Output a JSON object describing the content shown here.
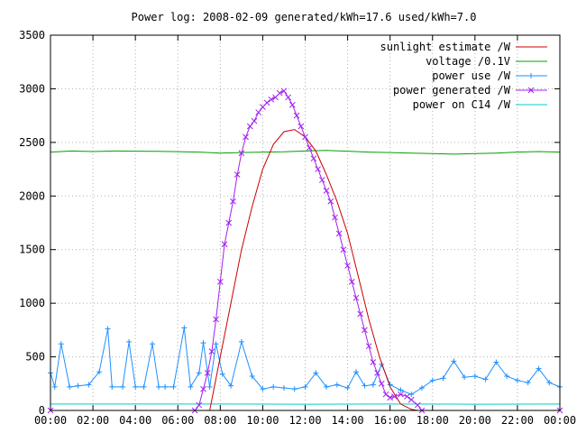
{
  "chart_data": {
    "type": "line",
    "title": "Power log: 2008-02-09 generated/kWh=17.6 used/kWh=7.0",
    "xlabel": "",
    "ylabel": "",
    "xlim": [
      0,
      24
    ],
    "ylim": [
      0,
      3500
    ],
    "grid": true,
    "legend_position": "top-right",
    "x_ticks": [
      "00:00",
      "02:00",
      "04:00",
      "06:00",
      "08:00",
      "10:00",
      "12:00",
      "14:00",
      "16:00",
      "18:00",
      "20:00",
      "22:00",
      "00:00"
    ],
    "y_ticks": [
      0,
      500,
      1000,
      1500,
      2000,
      2500,
      3000,
      3500
    ],
    "series": [
      {
        "name": "sunlight estimate /W",
        "color": "#cc0000",
        "marker": "none",
        "x": [
          7.5,
          8.0,
          8.5,
          9.0,
          9.5,
          10.0,
          10.5,
          11.0,
          11.5,
          12.0,
          12.5,
          13.0,
          13.5,
          14.0,
          14.5,
          15.0,
          15.5,
          16.0,
          16.5,
          17.0,
          17.3
        ],
        "y": [
          0,
          500,
          1000,
          1500,
          1900,
          2250,
          2480,
          2600,
          2620,
          2550,
          2420,
          2200,
          1950,
          1650,
          1250,
          850,
          500,
          220,
          60,
          10,
          0
        ]
      },
      {
        "name": "voltage /0.1V",
        "color": "#00a000",
        "marker": "none",
        "x": [
          0,
          1,
          2,
          3,
          4,
          5,
          6,
          7,
          8,
          9,
          10,
          11,
          12,
          13,
          14,
          15,
          16,
          17,
          18,
          19,
          20,
          21,
          22,
          23,
          24
        ],
        "y": [
          2410,
          2420,
          2415,
          2420,
          2418,
          2416,
          2414,
          2410,
          2400,
          2405,
          2410,
          2412,
          2420,
          2425,
          2418,
          2410,
          2405,
          2400,
          2395,
          2390,
          2395,
          2400,
          2410,
          2415,
          2410
        ]
      },
      {
        "name": "power use /W",
        "color": "#1e90ff",
        "marker": "+",
        "x": [
          0,
          0.2,
          0.5,
          0.9,
          1.3,
          1.8,
          2.3,
          2.7,
          2.9,
          3.4,
          3.7,
          4.0,
          4.4,
          4.8,
          5.1,
          5.4,
          5.8,
          6.3,
          6.6,
          7.0,
          7.2,
          7.5,
          7.8,
          8.1,
          8.5,
          9.0,
          9.5,
          10.0,
          10.5,
          11.0,
          11.5,
          12.0,
          12.5,
          13.0,
          13.5,
          14.0,
          14.4,
          14.8,
          15.2,
          15.6,
          16.0,
          16.5,
          17.0,
          17.5,
          18.0,
          18.5,
          19.0,
          19.5,
          20.0,
          20.5,
          21.0,
          21.5,
          22.0,
          22.5,
          23.0,
          23.5,
          24.0
        ],
        "y": [
          350,
          220,
          620,
          220,
          230,
          240,
          360,
          760,
          220,
          220,
          640,
          220,
          220,
          620,
          220,
          220,
          220,
          770,
          220,
          350,
          630,
          220,
          620,
          340,
          230,
          640,
          320,
          200,
          220,
          210,
          200,
          220,
          350,
          220,
          240,
          210,
          360,
          230,
          240,
          430,
          240,
          190,
          150,
          210,
          280,
          300,
          460,
          310,
          320,
          290,
          450,
          320,
          280,
          260,
          390,
          260,
          220
        ]
      },
      {
        "name": "power generated /W",
        "color": "#a020f0",
        "marker": "x",
        "x": [
          0,
          6.8,
          7.0,
          7.2,
          7.4,
          7.6,
          7.8,
          8.0,
          8.2,
          8.4,
          8.6,
          8.8,
          9.0,
          9.2,
          9.4,
          9.6,
          9.8,
          10.0,
          10.2,
          10.4,
          10.6,
          10.8,
          11.0,
          11.2,
          11.4,
          11.6,
          11.8,
          12.0,
          12.2,
          12.4,
          12.6,
          12.8,
          13.0,
          13.2,
          13.4,
          13.6,
          13.8,
          14.0,
          14.2,
          14.4,
          14.6,
          14.8,
          15.0,
          15.2,
          15.4,
          15.6,
          15.8,
          16.0,
          16.2,
          16.5,
          16.8,
          17.0,
          17.3,
          17.5,
          24.0
        ],
        "y": [
          0,
          0,
          50,
          200,
          350,
          550,
          850,
          1200,
          1550,
          1750,
          1950,
          2200,
          2400,
          2550,
          2650,
          2700,
          2780,
          2830,
          2870,
          2900,
          2920,
          2960,
          2980,
          2920,
          2850,
          2750,
          2650,
          2550,
          2450,
          2350,
          2250,
          2150,
          2050,
          1950,
          1800,
          1650,
          1500,
          1350,
          1200,
          1050,
          900,
          750,
          600,
          450,
          350,
          250,
          150,
          120,
          130,
          150,
          130,
          100,
          50,
          0,
          0
        ]
      },
      {
        "name": "power on C14 /W",
        "color": "#00cccc",
        "marker": "none",
        "x": [
          0,
          4,
          8,
          12,
          16,
          20,
          24
        ],
        "y": [
          60,
          60,
          60,
          58,
          60,
          58,
          60
        ]
      }
    ]
  }
}
